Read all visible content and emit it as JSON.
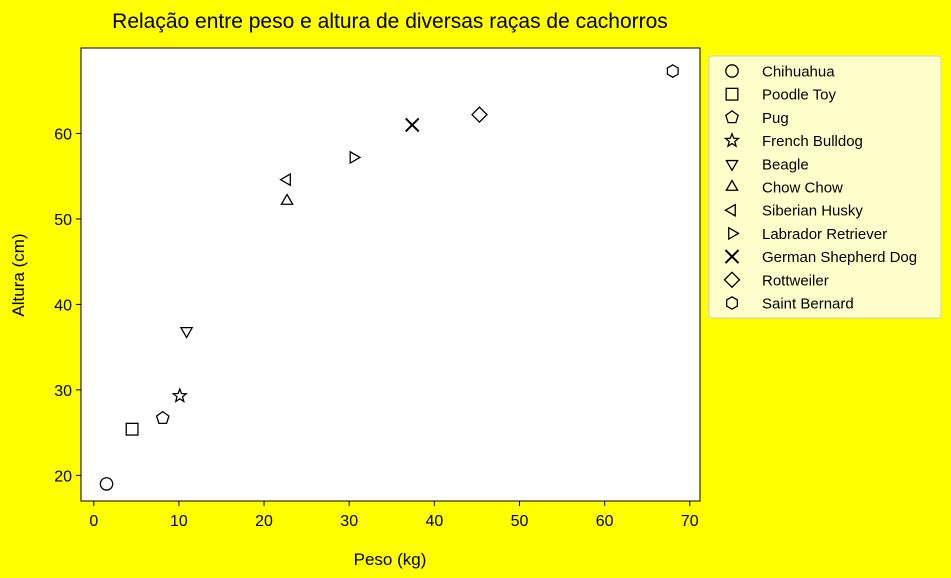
{
  "chart_data": {
    "type": "scatter",
    "title": "Relação entre peso e altura de diversas raças de cachorros",
    "xlabel": "Peso (kg)",
    "ylabel": "Altura (cm)",
    "xlim": [
      -1.5,
      71.2
    ],
    "ylim": [
      17,
      70
    ],
    "xticks": [
      0,
      10,
      20,
      30,
      40,
      50,
      60,
      70
    ],
    "yticks": [
      20,
      30,
      40,
      50,
      60
    ],
    "grid": false,
    "legend_position": "outside-right",
    "colors": {
      "background": "#ffff00",
      "plot_background": "#ffffff",
      "marker_edge": "#000000",
      "legend_background": "#ffffcc"
    },
    "series": [
      {
        "name": "Chihuahua",
        "marker": "circle",
        "x": 1.5,
        "y": 19.0
      },
      {
        "name": "Poodle Toy",
        "marker": "square",
        "x": 4.5,
        "y": 25.4
      },
      {
        "name": "Pug",
        "marker": "pentagon",
        "x": 8.1,
        "y": 26.7
      },
      {
        "name": "French Bulldog",
        "marker": "star",
        "x": 10.1,
        "y": 29.3
      },
      {
        "name": "Beagle",
        "marker": "triangle-down",
        "x": 10.9,
        "y": 36.9
      },
      {
        "name": "Chow Chow",
        "marker": "triangle-up",
        "x": 22.7,
        "y": 52.1
      },
      {
        "name": "Siberian Husky",
        "marker": "triangle-left",
        "x": 22.7,
        "y": 54.6
      },
      {
        "name": "Labrador Retriever",
        "marker": "triangle-right",
        "x": 30.5,
        "y": 57.2
      },
      {
        "name": "German Shepherd Dog",
        "marker": "x",
        "x": 37.4,
        "y": 61.0
      },
      {
        "name": "Rottweiler",
        "marker": "diamond",
        "x": 45.3,
        "y": 62.2
      },
      {
        "name": "Saint Bernard",
        "marker": "hexagon",
        "x": 68.0,
        "y": 67.3
      }
    ]
  }
}
